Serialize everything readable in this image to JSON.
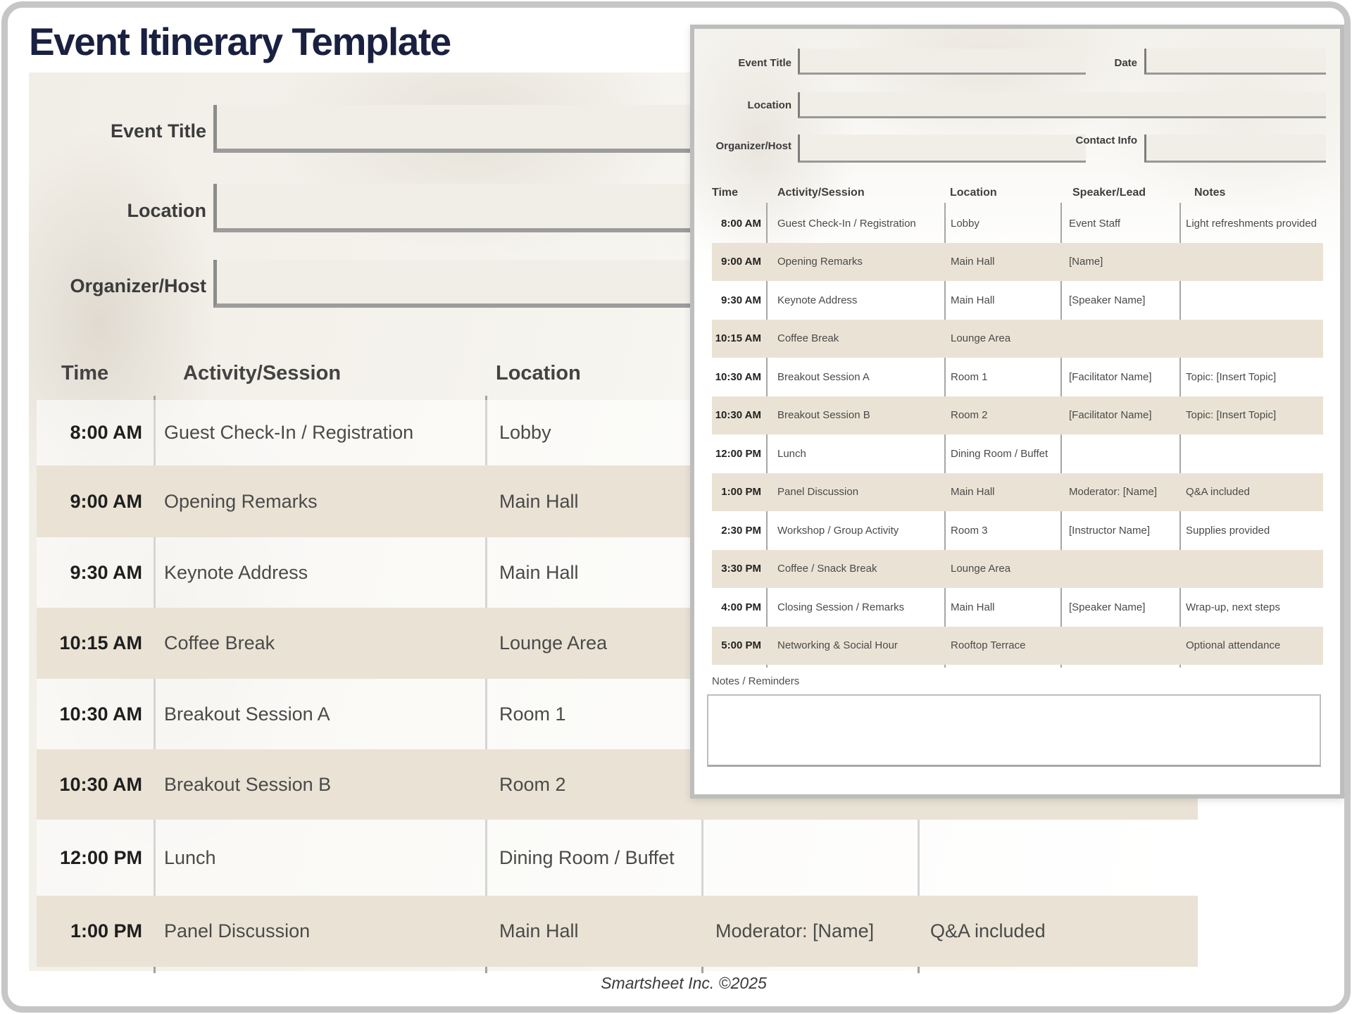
{
  "page": {
    "title": "Event Itinerary Template",
    "footer": "Smartsheet Inc. ©2025"
  },
  "form": {
    "event_title": {
      "label": "Event Title",
      "value": ""
    },
    "date": {
      "label": "Date",
      "value": ""
    },
    "location": {
      "label": "Location",
      "value": ""
    },
    "organizer": {
      "label": "Organizer/Host",
      "value": ""
    },
    "contact": {
      "label": "Contact Info",
      "value": ""
    }
  },
  "itinerary": {
    "headers": [
      "Time",
      "Activity/Session",
      "Location",
      "Speaker/Lead",
      "Notes"
    ],
    "rows": [
      {
        "time": "8:00 AM",
        "activity": "Guest Check-In / Registration",
        "location": "Lobby",
        "speaker": "Event Staff",
        "notes": "Light refreshments provided"
      },
      {
        "time": "9:00 AM",
        "activity": "Opening Remarks",
        "location": "Main Hall",
        "speaker": "[Name]",
        "notes": ""
      },
      {
        "time": "9:30 AM",
        "activity": "Keynote Address",
        "location": "Main Hall",
        "speaker": "[Speaker Name]",
        "notes": ""
      },
      {
        "time": "10:15 AM",
        "activity": "Coffee Break",
        "location": "Lounge Area",
        "speaker": "",
        "notes": ""
      },
      {
        "time": "10:30 AM",
        "activity": "Breakout Session A",
        "location": "Room 1",
        "speaker": "[Facilitator Name]",
        "notes": "Topic: [Insert Topic]"
      },
      {
        "time": "10:30 AM",
        "activity": "Breakout Session B",
        "location": "Room 2",
        "speaker": "[Facilitator Name]",
        "notes": "Topic: [Insert Topic]"
      },
      {
        "time": "12:00 PM",
        "activity": "Lunch",
        "location": "Dining Room / Buffet",
        "speaker": "",
        "notes": ""
      },
      {
        "time": "1:00 PM",
        "activity": "Panel Discussion",
        "location": "Main Hall",
        "speaker": "Moderator: [Name]",
        "notes": "Q&A included"
      },
      {
        "time": "2:30 PM",
        "activity": "Workshop / Group Activity",
        "location": "Room 3",
        "speaker": "[Instructor Name]",
        "notes": "Supplies provided"
      },
      {
        "time": "3:30 PM",
        "activity": "Coffee / Snack Break",
        "location": "Lounge Area",
        "speaker": "",
        "notes": ""
      },
      {
        "time": "4:00 PM",
        "activity": "Closing Session / Remarks",
        "location": "Main Hall",
        "speaker": "[Speaker Name]",
        "notes": "Wrap-up, next steps"
      },
      {
        "time": "5:00 PM",
        "activity": "Networking & Social Hour",
        "location": "Rooftop Terrace",
        "speaker": "",
        "notes": "Optional attendance"
      }
    ],
    "notes_reminders": {
      "label": "Notes / Reminders",
      "value": ""
    }
  },
  "colors": {
    "title_navy": "#1a2040",
    "row_beige": "#eae3d5",
    "field_fill": "#f1eee8",
    "divider_gray": "#a2a2a2",
    "overlay_border_gray": "#bdbdbd",
    "text_dark": "#3c3c3c"
  }
}
